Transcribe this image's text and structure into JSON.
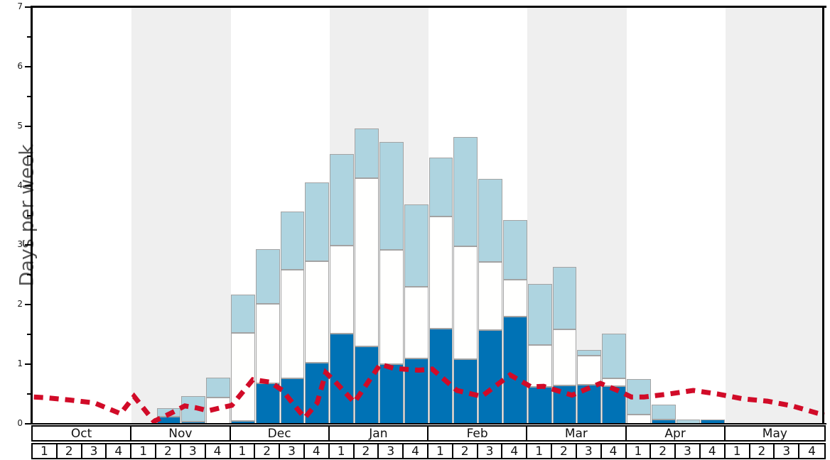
{
  "chart_data": {
    "type": "bar",
    "stacked": true,
    "title": "",
    "xlabel": "",
    "ylabel": "Days per week",
    "ylim": [
      0,
      7
    ],
    "y_major_tick_step": 1,
    "y_minor_tick_step": 0.5,
    "y_tick_labels": [
      "0",
      "1",
      "2",
      "3",
      "4",
      "5",
      "6",
      "7"
    ],
    "grid": false,
    "legend": "none",
    "months": [
      {
        "label": "Oct",
        "weeks": [
          "1",
          "2",
          "3",
          "4"
        ],
        "shaded": false
      },
      {
        "label": "Nov",
        "weeks": [
          "1",
          "2",
          "3",
          "4"
        ],
        "shaded": true
      },
      {
        "label": "Dec",
        "weeks": [
          "1",
          "2",
          "3",
          "4"
        ],
        "shaded": false
      },
      {
        "label": "Jan",
        "weeks": [
          "1",
          "2",
          "3",
          "4"
        ],
        "shaded": true
      },
      {
        "label": "Feb",
        "weeks": [
          "1",
          "2",
          "3",
          "4"
        ],
        "shaded": false
      },
      {
        "label": "Mar",
        "weeks": [
          "1",
          "2",
          "3",
          "4"
        ],
        "shaded": true
      },
      {
        "label": "Apr",
        "weeks": [
          "1",
          "2",
          "3",
          "4"
        ],
        "shaded": false
      },
      {
        "label": "May",
        "weeks": [
          "1",
          "2",
          "3",
          "4"
        ],
        "shaded": true
      }
    ],
    "categories": [
      "Oct-1",
      "Oct-2",
      "Oct-3",
      "Oct-4",
      "Nov-1",
      "Nov-2",
      "Nov-3",
      "Nov-4",
      "Dec-1",
      "Dec-2",
      "Dec-3",
      "Dec-4",
      "Jan-1",
      "Jan-2",
      "Jan-3",
      "Jan-4",
      "Feb-1",
      "Feb-2",
      "Feb-3",
      "Feb-4",
      "Mar-1",
      "Mar-2",
      "Mar-3",
      "Mar-4",
      "Apr-1",
      "Apr-2",
      "Apr-3",
      "Apr-4",
      "May-1",
      "May-2",
      "May-3",
      "May-4"
    ],
    "series": [
      {
        "name": "dark-blue-days",
        "color": "#0072b5",
        "values": [
          0,
          0,
          0,
          0,
          0,
          0.12,
          0.04,
          0,
          0.05,
          0.68,
          0.76,
          1.03,
          1.51,
          1.3,
          1.0,
          1.1,
          1.6,
          1.08,
          1.58,
          1.8,
          0.62,
          0.64,
          0.66,
          0.63,
          0,
          0.07,
          0,
          0.07,
          0,
          0,
          0,
          0
        ]
      },
      {
        "name": "white-days",
        "color": "#fffffe",
        "values": [
          0,
          0,
          0,
          0,
          0,
          0,
          0,
          0.44,
          1.48,
          1.33,
          1.83,
          1.7,
          1.48,
          2.83,
          1.92,
          1.2,
          1.88,
          1.9,
          1.14,
          0.62,
          0.7,
          0.95,
          0.49,
          0.13,
          0.16,
          0,
          0,
          0,
          0,
          0,
          0,
          0
        ]
      },
      {
        "name": "light-blue-days",
        "color": "#aed4e0",
        "values": [
          0,
          0,
          0,
          0,
          0,
          0.14,
          0.42,
          0.33,
          0.64,
          0.92,
          0.97,
          1.32,
          1.54,
          0.83,
          1.82,
          1.38,
          0.99,
          1.84,
          1.39,
          1.0,
          1.03,
          1.05,
          0.09,
          0.75,
          0.59,
          0.25,
          0.07,
          0,
          0,
          0,
          0,
          0
        ]
      }
    ],
    "line_series": {
      "name": "red-dashed-line",
      "color": "#d10b28",
      "style": "dashed",
      "points_week_vs_days": [
        [
          0.05,
          0.45
        ],
        [
          0.5,
          0.44
        ],
        [
          1.5,
          0.4
        ],
        [
          2.5,
          0.35
        ],
        [
          3.55,
          0.17
        ],
        [
          4.1,
          0.46
        ],
        [
          4.9,
          0.04
        ],
        [
          5.6,
          0.18
        ],
        [
          6.15,
          0.3
        ],
        [
          6.6,
          0.27
        ],
        [
          7.1,
          0.22
        ],
        [
          7.6,
          0.27
        ],
        [
          8.05,
          0.31
        ],
        [
          8.9,
          0.74
        ],
        [
          9.6,
          0.7
        ],
        [
          10.1,
          0.56
        ],
        [
          10.6,
          0.3
        ],
        [
          11.0,
          0.1
        ],
        [
          11.5,
          0.35
        ],
        [
          11.85,
          0.86
        ],
        [
          12.2,
          0.72
        ],
        [
          13.0,
          0.36
        ],
        [
          14.05,
          1.0
        ],
        [
          14.6,
          0.93
        ],
        [
          15.6,
          0.9
        ],
        [
          16.15,
          0.92
        ],
        [
          17.15,
          0.56
        ],
        [
          18.15,
          0.46
        ],
        [
          19.3,
          0.82
        ],
        [
          20.15,
          0.62
        ],
        [
          20.65,
          0.63
        ],
        [
          21.8,
          0.48
        ],
        [
          22.95,
          0.68
        ],
        [
          23.7,
          0.55
        ],
        [
          24.2,
          0.45
        ],
        [
          24.7,
          0.45
        ],
        [
          25.7,
          0.5
        ],
        [
          26.7,
          0.56
        ],
        [
          27.7,
          0.5
        ],
        [
          28.7,
          0.42
        ],
        [
          29.7,
          0.38
        ],
        [
          30.7,
          0.3
        ],
        [
          31.7,
          0.18
        ],
        [
          32,
          0.15
        ]
      ]
    },
    "colors": {
      "dark_blue": "#0072b5",
      "light_blue": "#aed4e0",
      "bar_white": "#fffffe",
      "bar_border": "#a3a3a3",
      "red_line": "#d10b28",
      "band_gray": "#efefef",
      "axis": "#000000",
      "ylabel_text": "#555555"
    }
  }
}
